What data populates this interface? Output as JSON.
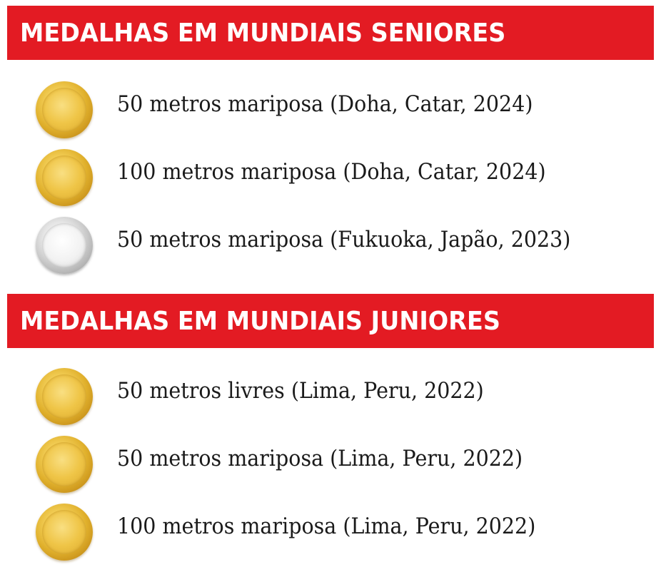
{
  "sections": [
    {
      "title": "MEDALHAS EM MUNDIAIS SENIORES",
      "items": [
        {
          "medal": "gold",
          "medal_icon": "gold-medal-icon",
          "text": "50 metros mariposa (Doha, Catar, 2024)"
        },
        {
          "medal": "gold",
          "medal_icon": "gold-medal-icon",
          "text": "100 metros mariposa (Doha, Catar, 2024)"
        },
        {
          "medal": "silver",
          "medal_icon": "silver-medal-icon",
          "text": "50 metros mariposa (Fukuoka, Japão, 2023)"
        }
      ]
    },
    {
      "title": "MEDALHAS EM MUNDIAIS JUNIORES",
      "items": [
        {
          "medal": "gold",
          "medal_icon": "gold-medal-icon",
          "text": "50 metros livres (Lima, Peru, 2022)"
        },
        {
          "medal": "gold",
          "medal_icon": "gold-medal-icon",
          "text": "50 metros mariposa (Lima, Peru, 2022)"
        },
        {
          "medal": "gold",
          "medal_icon": "gold-medal-icon",
          "text": "100 metros mariposa (Lima, Peru, 2022)"
        }
      ]
    }
  ],
  "colors": {
    "banner": "#e31b23",
    "banner_text": "#ffffff",
    "body_text": "#1a1a1a",
    "gold": "#e0b02c",
    "silver": "#c0c0c0"
  }
}
